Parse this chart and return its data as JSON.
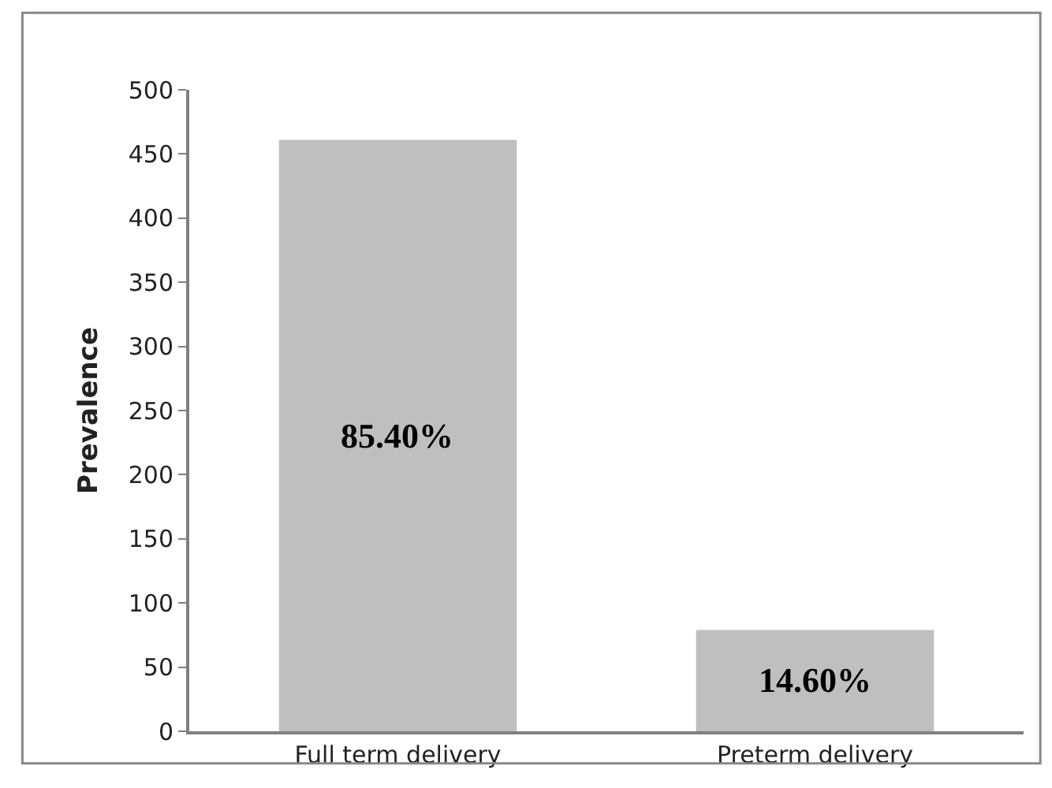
{
  "chart_data": {
    "type": "bar",
    "ylabel": "Prevalence",
    "categories": [
      "Full term delivery",
      "Preterm delivery"
    ],
    "values": [
      461,
      79
    ],
    "color": "#bfbfbf",
    "ylim": [
      0,
      500
    ],
    "yticks": [
      0,
      50,
      100,
      150,
      200,
      250,
      300,
      350,
      400,
      450,
      500
    ],
    "annotations": [
      "85.40%",
      "14.60%"
    ]
  }
}
